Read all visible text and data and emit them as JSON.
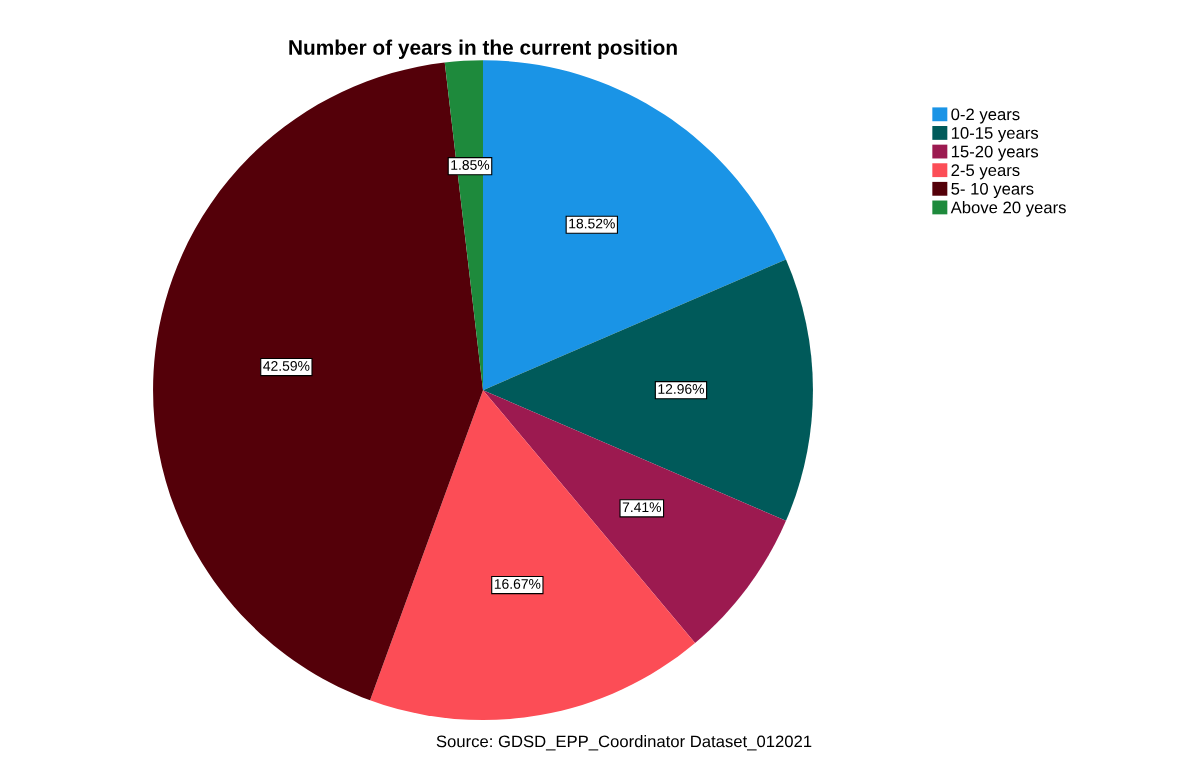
{
  "chart_data": {
    "type": "pie",
    "title": "Number of years in the current position",
    "categories": [
      "0-2 years",
      "10-15 years",
      "15-20 years",
      "2-5 years",
      "5- 10 years",
      "Above 20 years"
    ],
    "values": [
      18.52,
      12.96,
      7.41,
      16.67,
      42.59,
      1.85
    ],
    "colors": [
      "#1a94e6",
      "#005a5a",
      "#9c1a50",
      "#fc4d56",
      "#540009",
      "#1e8a3c"
    ],
    "value_labels": [
      "18.52%",
      "12.96%",
      "7.41%",
      "16.67%",
      "42.59%",
      "1.85%"
    ],
    "legend": "top right",
    "annotations": [
      "Source: GDSD_EPP_Coordinator Dataset_012021"
    ]
  }
}
